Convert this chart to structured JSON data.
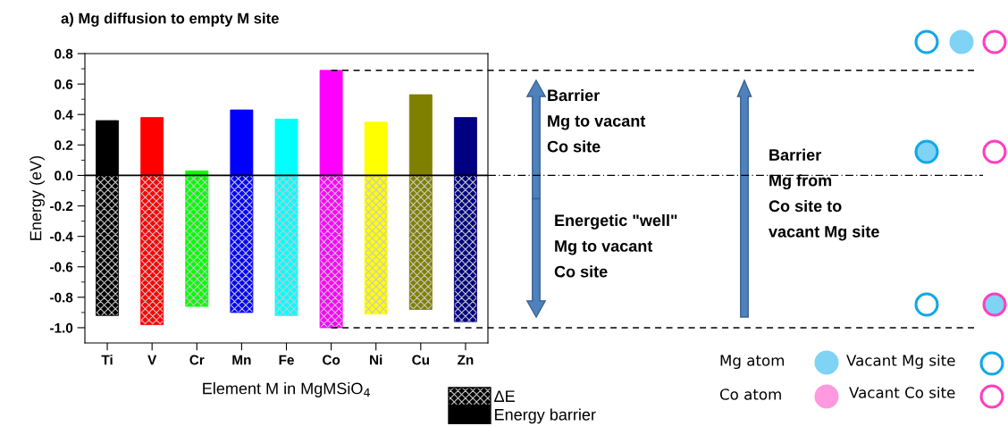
{
  "chart_data": {
    "type": "bar",
    "title": "a) Mg diffusion to empty M site",
    "xlabel": "Element M in MgMSiO$_{4}$",
    "ylabel": "Energy (eV)",
    "categories": [
      "Ti",
      "V",
      "Cr",
      "Mn",
      "Fe",
      "Co",
      "Ni",
      "Cu",
      "Zn"
    ],
    "stacked": true,
    "series": [
      {
        "name": "ΔE",
        "colors": [
          "#000000",
          "#ff0000",
          "#00ff00",
          "#0000ff",
          "#00ffff",
          "#ff00ff",
          "#ffff00",
          "#808000",
          "#000080"
        ],
        "values": [
          -0.92,
          -0.98,
          -0.86,
          -0.9,
          -0.92,
          -1.0,
          -0.91,
          -0.88,
          -0.96
        ]
      },
      {
        "name": "Energy barrier",
        "colors": [
          "#000000",
          "#ff0000",
          "#00ff00",
          "#0000ff",
          "#00ffff",
          "#ff00ff",
          "#ffff00",
          "#808000",
          "#000080"
        ],
        "values": [
          0.36,
          0.38,
          0.03,
          0.43,
          0.37,
          0.69,
          0.35,
          0.53,
          0.38
        ]
      }
    ],
    "ylim": [
      -1.1,
      0.8
    ],
    "yticks": [
      {
        "value": -1.0,
        "label": "-1.0"
      },
      -0.8,
      -0.6,
      -0.4,
      -0.2,
      {
        "value": 0.0,
        "label": "0.0"
      },
      0.2,
      0.4,
      0.6,
      0.8
    ],
    "ref_lines": [
      {
        "axis": "y",
        "value": 0.0,
        "line_style": "solid",
        "color": "#000000"
      },
      {
        "axis": "y",
        "value": 0.69,
        "line_style": "dashed",
        "color": "#000000"
      },
      {
        "axis": "y",
        "value": -1.0,
        "line_style": "dashed",
        "color": "#000000"
      }
    ],
    "legend": "bottom right",
    "grid": false,
    "annotations": [
      "Barrier\nMg to vacant\nCo site",
      "Energetic \"well\"\nMg to vacant\nCo site",
      "Barrier\nMg from\nCo site to\nvacant Mg site",
      "Mg atom",
      "Vacant Mg site",
      "Co atom",
      "Vacant Co site"
    ]
  }
}
